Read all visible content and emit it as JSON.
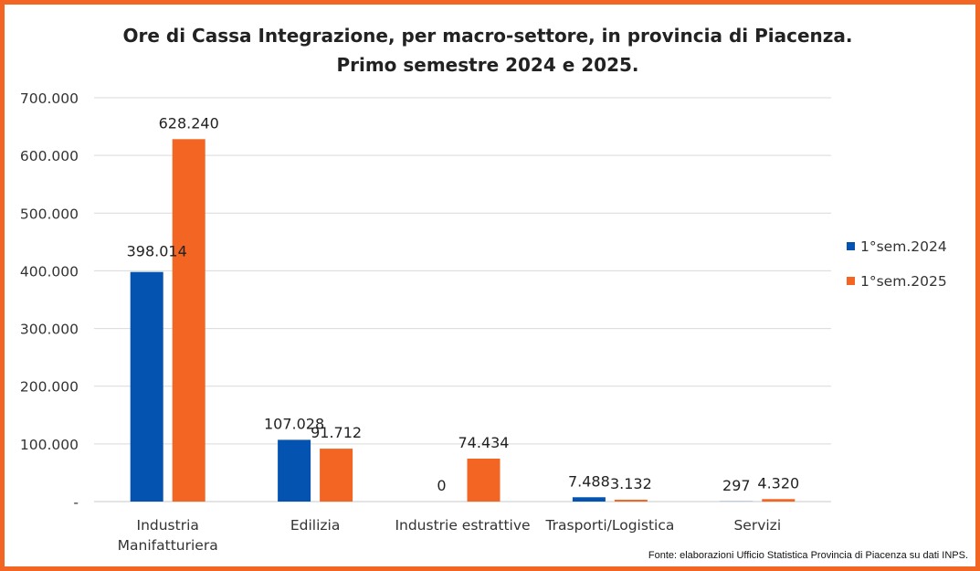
{
  "chart_data": {
    "type": "bar",
    "title": "Ore di Cassa Integrazione, per macro-settore, in provincia di  Piacenza.",
    "subtitle": "Primo semestre 2024 e 2025.",
    "categories": [
      [
        "Industria",
        "Manifatturiera"
      ],
      [
        "Edilizia"
      ],
      [
        "Industrie estrattive"
      ],
      [
        "Trasporti/Logistica"
      ],
      [
        "Servizi"
      ]
    ],
    "series": [
      {
        "name": "1°sem.2024",
        "color": "#0553b0",
        "values": [
          398014,
          107028,
          0,
          7488,
          297
        ],
        "labels": [
          "398.014",
          "107.028",
          "0",
          "7.488",
          "297"
        ]
      },
      {
        "name": "1°sem.2025",
        "color": "#f26522",
        "values": [
          628240,
          91712,
          74434,
          3132,
          4320
        ],
        "labels": [
          "628.240",
          "91.712",
          "74.434",
          "3.132",
          "4.320"
        ]
      }
    ],
    "ylim": [
      0,
      700000
    ],
    "yticks": [
      0,
      100000,
      200000,
      300000,
      400000,
      500000,
      600000,
      700000
    ],
    "ytick_labels": [
      "-",
      "100.000",
      "200.000",
      "300.000",
      "400.000",
      "500.000",
      "600.000",
      "700.000"
    ],
    "grid": true,
    "legend_position": "right",
    "source_note": "Fonte: elaborazioni Ufficio Statistica Provincia di Piacenza su dati INPS."
  },
  "frame_color": "#f26522"
}
